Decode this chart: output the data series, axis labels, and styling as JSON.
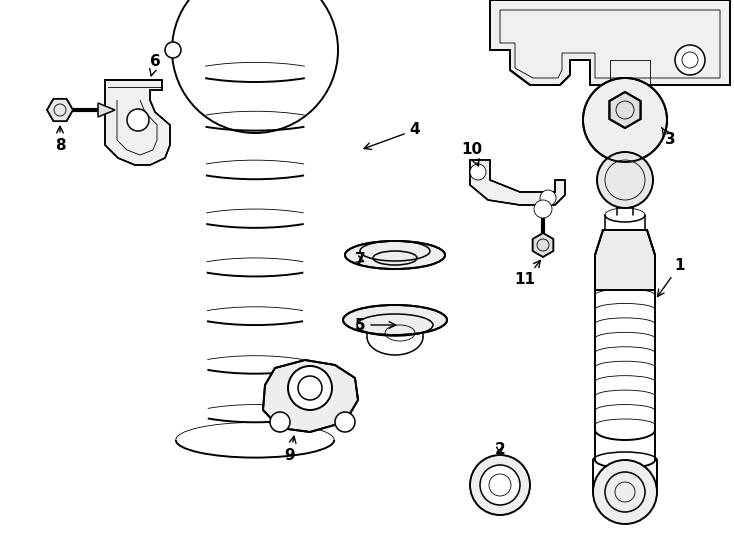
{
  "bg_color": "#ffffff",
  "line_color": "#000000",
  "fig_width": 7.34,
  "fig_height": 5.4,
  "dpi": 100,
  "lw": 1.1,
  "lw_thin": 0.6,
  "lw_thick": 1.4
}
